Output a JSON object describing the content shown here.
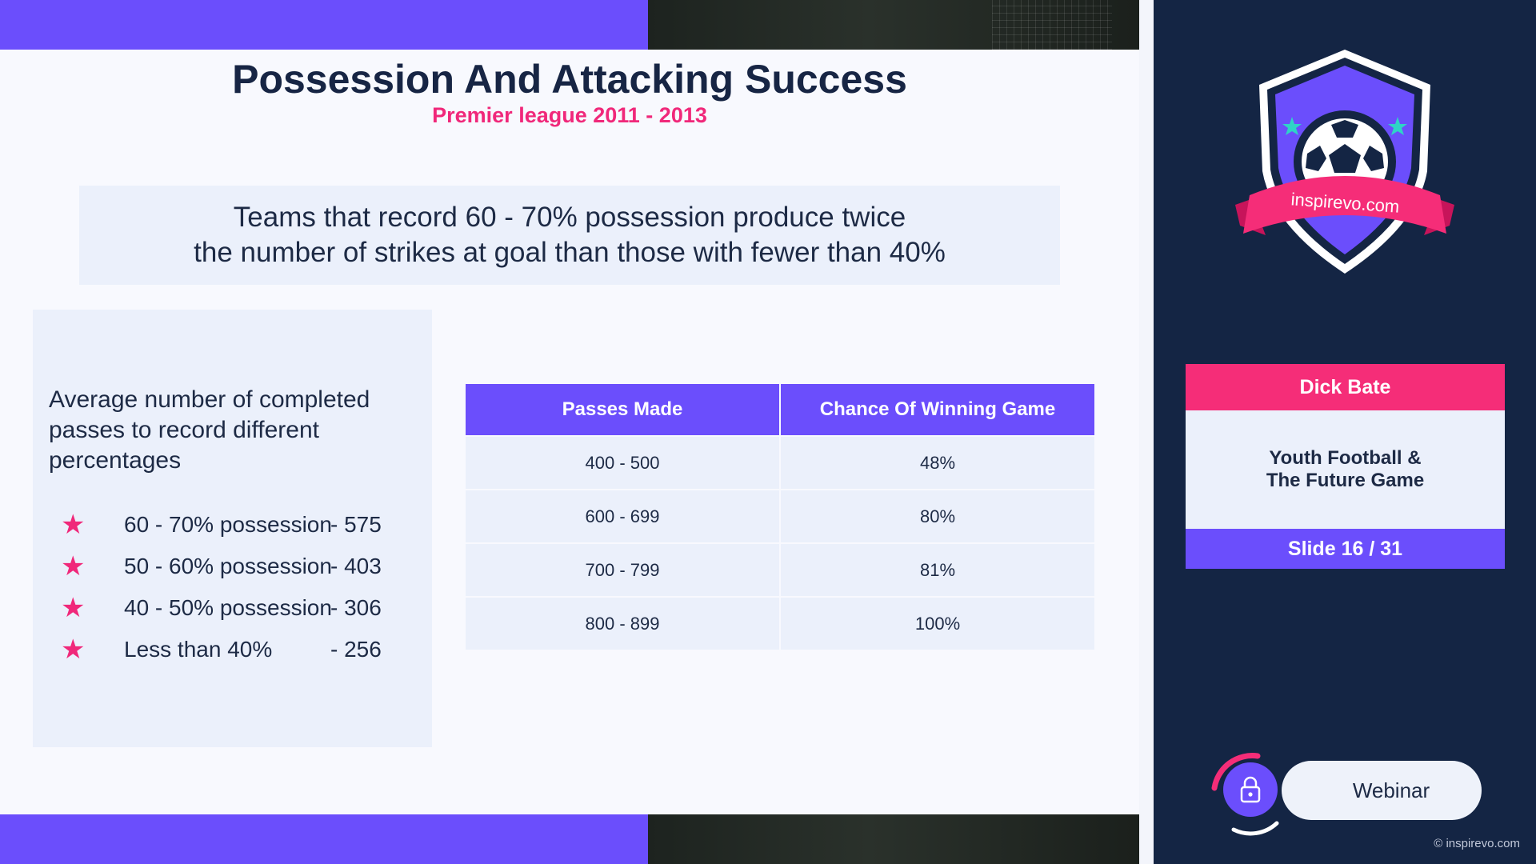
{
  "slide": {
    "title": "Possession And Attacking Success",
    "subtitle": "Premier league 2011 - 2013",
    "callout": {
      "line1": "Teams that record 60 - 70% possession produce twice",
      "line2": "the number of strikes at goal than those with fewer than 40%"
    },
    "left_panel": {
      "heading": "Average number of completed passes to record different percentages",
      "items": [
        {
          "label": "60 - 70% possession",
          "value": "- 575"
        },
        {
          "label": "50 - 60% possession",
          "value": "- 403"
        },
        {
          "label": "40 - 50% possession",
          "value": "- 306"
        },
        {
          "label": "Less than 40%",
          "value": "- 256"
        }
      ]
    },
    "table": {
      "headers": [
        "Passes Made",
        "Chance Of Winning Game"
      ],
      "rows": [
        [
          "400 - 500",
          "48%"
        ],
        [
          "600 - 699",
          "80%"
        ],
        [
          "700 - 799",
          "81%"
        ],
        [
          "800 - 899",
          "100%"
        ]
      ]
    }
  },
  "sidebar": {
    "badge_text": "inspirevo.com",
    "speaker": "Dick Bate",
    "topic_line1": "Youth Football &",
    "topic_line2": "The Future Game",
    "slide_counter": "Slide 16 / 31",
    "webinar_label": "Webinar",
    "copyright": "© inspirevo.com"
  },
  "colors": {
    "purple": "#6b4efc",
    "pink": "#f52d78",
    "navy": "#142544",
    "panel": "#ebf0fb",
    "teal_star": "#2fd3c7"
  },
  "icons": [
    "star-icon",
    "lock-icon",
    "soccer-ball-icon",
    "shield-badge-icon"
  ]
}
